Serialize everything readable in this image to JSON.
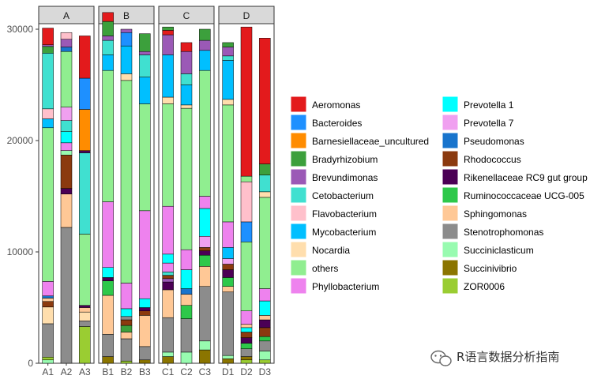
{
  "chart_data": {
    "type": "bar",
    "stacked": true,
    "facets": [
      "A",
      "B",
      "C",
      "D"
    ],
    "samples": {
      "A": [
        "A1",
        "A2",
        "A3"
      ],
      "B": [
        "B1",
        "B2",
        "B3"
      ],
      "C": [
        "C1",
        "C2",
        "C3"
      ],
      "D": [
        "D1",
        "D2",
        "D3"
      ]
    },
    "ylim": [
      0,
      30000
    ],
    "yticks": [
      0,
      10000,
      20000,
      30000
    ],
    "ytick_labels": [
      "0",
      "10000",
      "20000",
      "30000"
    ],
    "legend_position": "right",
    "taxa": [
      {
        "name": "Aeromonas",
        "color": "#e31a1c"
      },
      {
        "name": "Bacteroides",
        "color": "#1e90ff"
      },
      {
        "name": "Barnesiellaceae_uncultured",
        "color": "#ff8c00"
      },
      {
        "name": "Bradyrhizobium",
        "color": "#3ca03c"
      },
      {
        "name": "Brevundimonas",
        "color": "#9b59b6"
      },
      {
        "name": "Cetobacterium",
        "color": "#40e0d0"
      },
      {
        "name": "Flavobacterium",
        "color": "#ffc0cb"
      },
      {
        "name": "Mycobacterium",
        "color": "#00bfff"
      },
      {
        "name": "Nocardia",
        "color": "#ffdead"
      },
      {
        "name": "others",
        "color": "#90ee90"
      },
      {
        "name": "Phyllobacterium",
        "color": "#ee82ee"
      },
      {
        "name": "Prevotella 1",
        "color": "#00ffff"
      },
      {
        "name": "Prevotella 7",
        "color": "#f0a0f0"
      },
      {
        "name": "Pseudomonas",
        "color": "#1874cd"
      },
      {
        "name": "Rhodococcus",
        "color": "#8b3a0f"
      },
      {
        "name": "Rikenellaceae RC9 gut group",
        "color": "#4b0055"
      },
      {
        "name": "Ruminococcaceae UCG-005",
        "color": "#2ec84a"
      },
      {
        "name": "Sphingomonas",
        "color": "#ffc896"
      },
      {
        "name": "Stenotrophomonas",
        "color": "#8c8c8c"
      },
      {
        "name": "Succiniclasticum",
        "color": "#98fbb0"
      },
      {
        "name": "Succinivibrio",
        "color": "#8b7500"
      },
      {
        "name": "ZOR0006",
        "color": "#9acd32"
      }
    ],
    "series_by_sample": {
      "A1": [
        {
          "taxon": "Succiniclasticum",
          "value": 300
        },
        {
          "taxon": "ZOR0006",
          "value": 250
        },
        {
          "taxon": "Stenotrophomonas",
          "value": 3000
        },
        {
          "taxon": "Nocardia",
          "value": 1500
        },
        {
          "taxon": "Rhodococcus",
          "value": 500
        },
        {
          "taxon": "Sphingomonas",
          "value": 300
        },
        {
          "taxon": "Pseudomonas",
          "value": 200
        },
        {
          "taxon": "Phyllobacterium",
          "value": 1300
        },
        {
          "taxon": "others",
          "value": 13800
        },
        {
          "taxon": "Mycobacterium",
          "value": 800
        },
        {
          "taxon": "Flavobacterium",
          "value": 900
        },
        {
          "taxon": "Cetobacterium",
          "value": 5000
        },
        {
          "taxon": "Bradyrhizobium",
          "value": 600
        },
        {
          "taxon": "Brevundimonas",
          "value": 150
        },
        {
          "taxon": "Aeromonas",
          "value": 1500
        }
      ],
      "A2": [
        {
          "taxon": "Stenotrophomonas",
          "value": 12200
        },
        {
          "taxon": "Sphingomonas",
          "value": 3000
        },
        {
          "taxon": "Rikenellaceae RC9 gut group",
          "value": 500
        },
        {
          "taxon": "Rhodococcus",
          "value": 3000
        },
        {
          "taxon": "Succiniclasticum",
          "value": 400
        },
        {
          "taxon": "Phyllobacterium",
          "value": 700
        },
        {
          "taxon": "Prevotella 1",
          "value": 1000
        },
        {
          "taxon": "Cetobacterium",
          "value": 1000
        },
        {
          "taxon": "Prevotella 7",
          "value": 1200
        },
        {
          "taxon": "others",
          "value": 5000
        },
        {
          "taxon": "Pseudomonas",
          "value": 400
        },
        {
          "taxon": "Brevundimonas",
          "value": 700
        },
        {
          "taxon": "Flavobacterium",
          "value": 600
        }
      ],
      "A3": [
        {
          "taxon": "ZOR0006",
          "value": 3300
        },
        {
          "taxon": "Stenotrophomonas",
          "value": 500
        },
        {
          "taxon": "Nocardia",
          "value": 800
        },
        {
          "taxon": "Sphingomonas",
          "value": 400
        },
        {
          "taxon": "Rikenellaceae RC9 gut group",
          "value": 200
        },
        {
          "taxon": "others",
          "value": 6400
        },
        {
          "taxon": "Cetobacterium",
          "value": 7300
        },
        {
          "taxon": "Rikenellaceae RC9 gut group",
          "value": 200
        },
        {
          "taxon": "Barnesiellaceae_uncultured",
          "value": 3700
        },
        {
          "taxon": "Bacteroides",
          "value": 2800
        },
        {
          "taxon": "Aeromonas",
          "value": 3800
        }
      ],
      "B1": [
        {
          "taxon": "Succinivibrio",
          "value": 600
        },
        {
          "taxon": "Stenotrophomonas",
          "value": 2000
        },
        {
          "taxon": "Sphingomonas",
          "value": 3500
        },
        {
          "taxon": "Ruminococcaceae UCG-005",
          "value": 1300
        },
        {
          "taxon": "Rikenellaceae RC9 gut group",
          "value": 300
        },
        {
          "taxon": "Prevotella 1",
          "value": 900
        },
        {
          "taxon": "Phyllobacterium",
          "value": 5900
        },
        {
          "taxon": "others",
          "value": 11800
        },
        {
          "taxon": "Mycobacterium",
          "value": 1400
        },
        {
          "taxon": "Cetobacterium",
          "value": 1300
        },
        {
          "taxon": "Brevundimonas",
          "value": 400
        },
        {
          "taxon": "Bradyrhizobium",
          "value": 1300
        },
        {
          "taxon": "Aeromonas",
          "value": 800
        }
      ],
      "B2": [
        {
          "taxon": "ZOR0006",
          "value": 200
        },
        {
          "taxon": "Stenotrophomonas",
          "value": 2000
        },
        {
          "taxon": "Sphingomonas",
          "value": 600
        },
        {
          "taxon": "Bradyrhizobium",
          "value": 600
        },
        {
          "taxon": "Rhodococcus",
          "value": 500
        },
        {
          "taxon": "Stenotrophomonas",
          "value": 300
        },
        {
          "taxon": "Prevotella 1",
          "value": 700
        },
        {
          "taxon": "Phyllobacterium",
          "value": 2300
        },
        {
          "taxon": "others",
          "value": 18200
        },
        {
          "taxon": "Nocardia",
          "value": 600
        },
        {
          "taxon": "Mycobacterium",
          "value": 2500
        },
        {
          "taxon": "Bacteroides",
          "value": 1200
        },
        {
          "taxon": "Brevundimonas",
          "value": 300
        }
      ],
      "B3": [
        {
          "taxon": "Succinivibrio",
          "value": 300
        },
        {
          "taxon": "Stenotrophomonas",
          "value": 1200
        },
        {
          "taxon": "Sphingomonas",
          "value": 2800
        },
        {
          "taxon": "Rhodococcus",
          "value": 400
        },
        {
          "taxon": "Rikenellaceae RC9 gut group",
          "value": 300
        },
        {
          "taxon": "Prevotella 1",
          "value": 800
        },
        {
          "taxon": "Phyllobacterium",
          "value": 7900
        },
        {
          "taxon": "others",
          "value": 9600
        },
        {
          "taxon": "Mycobacterium",
          "value": 2400
        },
        {
          "taxon": "Cetobacterium",
          "value": 2000
        },
        {
          "taxon": "Brevundimonas",
          "value": 300
        },
        {
          "taxon": "Bradyrhizobium",
          "value": 1600
        }
      ],
      "C1": [
        {
          "taxon": "Succinivibrio",
          "value": 600
        },
        {
          "taxon": "Succiniclasticum",
          "value": 400
        },
        {
          "taxon": "Stenotrophomonas",
          "value": 3100
        },
        {
          "taxon": "Sphingomonas",
          "value": 2500
        },
        {
          "taxon": "Rikenellaceae RC9 gut group",
          "value": 700
        },
        {
          "taxon": "Brevundimonas",
          "value": 300
        },
        {
          "taxon": "Rhodococcus",
          "value": 300
        },
        {
          "taxon": "Cetobacterium",
          "value": 300
        },
        {
          "taxon": "Phyllobacterium",
          "value": 800
        },
        {
          "taxon": "Prevotella 1",
          "value": 800
        },
        {
          "taxon": "Phyllobacterium",
          "value": 4300
        },
        {
          "taxon": "others",
          "value": 9200
        },
        {
          "taxon": "Nocardia",
          "value": 600
        },
        {
          "taxon": "Mycobacterium",
          "value": 3800
        },
        {
          "taxon": "Brevundimonas",
          "value": 1800
        },
        {
          "taxon": "Aeromonas",
          "value": 400
        },
        {
          "taxon": "Bradyrhizobium",
          "value": 300
        }
      ],
      "C2": [
        {
          "taxon": "Succiniclasticum",
          "value": 1000
        },
        {
          "taxon": "Stenotrophomonas",
          "value": 3000
        },
        {
          "taxon": "Ruminococcaceae UCG-005",
          "value": 1200
        },
        {
          "taxon": "Sphingomonas",
          "value": 1000
        },
        {
          "taxon": "Pseudomonas",
          "value": 500
        },
        {
          "taxon": "Prevotella 1",
          "value": 1700
        },
        {
          "taxon": "Phyllobacterium",
          "value": 1800
        },
        {
          "taxon": "others",
          "value": 12700
        },
        {
          "taxon": "Nocardia",
          "value": 300
        },
        {
          "taxon": "Mycobacterium",
          "value": 1800
        },
        {
          "taxon": "Cetobacterium",
          "value": 1000
        },
        {
          "taxon": "Brevundimonas",
          "value": 2000
        },
        {
          "taxon": "Aeromonas",
          "value": 800
        }
      ],
      "C3": [
        {
          "taxon": "Succinivibrio",
          "value": 1200
        },
        {
          "taxon": "Succiniclasticum",
          "value": 800
        },
        {
          "taxon": "Stenotrophomonas",
          "value": 4900
        },
        {
          "taxon": "Sphingomonas",
          "value": 1800
        },
        {
          "taxon": "Ruminococcaceae UCG-005",
          "value": 1000
        },
        {
          "taxon": "Rikenellaceae RC9 gut group",
          "value": 400
        },
        {
          "taxon": "Rhodococcus",
          "value": 300
        },
        {
          "taxon": "Prevotella 7",
          "value": 1000
        },
        {
          "taxon": "Prevotella 1",
          "value": 2500
        },
        {
          "taxon": "Phyllobacterium",
          "value": 1100
        },
        {
          "taxon": "others",
          "value": 11300
        },
        {
          "taxon": "Mycobacterium",
          "value": 1800
        },
        {
          "taxon": "Brevundimonas",
          "value": 900
        },
        {
          "taxon": "Bradyrhizobium",
          "value": 1000
        }
      ],
      "D1": [
        {
          "taxon": "Succinivibrio",
          "value": 400
        },
        {
          "taxon": "Succiniclasticum",
          "value": 300
        },
        {
          "taxon": "Stenotrophomonas",
          "value": 5700
        },
        {
          "taxon": "Sphingomonas",
          "value": 500
        },
        {
          "taxon": "Ruminococcaceae UCG-005",
          "value": 800
        },
        {
          "taxon": "Rikenellaceae RC9 gut group",
          "value": 700
        },
        {
          "taxon": "Rhodococcus",
          "value": 500
        },
        {
          "taxon": "Prevotella 7",
          "value": 500
        },
        {
          "taxon": "Mycobacterium",
          "value": 1000
        },
        {
          "taxon": "Phyllobacterium",
          "value": 2300
        },
        {
          "taxon": "others",
          "value": 10500
        },
        {
          "taxon": "Nocardia",
          "value": 500
        },
        {
          "taxon": "Mycobacterium",
          "value": 3500
        },
        {
          "taxon": "Cetobacterium",
          "value": 400
        },
        {
          "taxon": "Brevundimonas",
          "value": 800
        },
        {
          "taxon": "Bradyrhizobium",
          "value": 400
        }
      ],
      "D2": [
        {
          "taxon": "ZOR0006",
          "value": 300
        },
        {
          "taxon": "Succinivibrio",
          "value": 300
        },
        {
          "taxon": "Stenotrophomonas",
          "value": 700
        },
        {
          "taxon": "Ruminococcaceae UCG-005",
          "value": 500
        },
        {
          "taxon": "Rikenellaceae RC9 gut group",
          "value": 500
        },
        {
          "taxon": "Rhodococcus",
          "value": 500
        },
        {
          "taxon": "Prevotella 1",
          "value": 400
        },
        {
          "taxon": "Sphingomonas",
          "value": 300
        },
        {
          "taxon": "Phyllobacterium",
          "value": 1200
        },
        {
          "taxon": "others",
          "value": 6200
        },
        {
          "taxon": "Bacteroides",
          "value": 1800
        },
        {
          "taxon": "Flavobacterium",
          "value": 3600
        },
        {
          "taxon": "others",
          "value": 500
        },
        {
          "taxon": "Aeromonas",
          "value": 13400
        }
      ],
      "D3": [
        {
          "taxon": "ZOR0006",
          "value": 300
        },
        {
          "taxon": "Succiniclasticum",
          "value": 800
        },
        {
          "taxon": "Stenotrophomonas",
          "value": 900
        },
        {
          "taxon": "Ruminococcaceae UCG-005",
          "value": 400
        },
        {
          "taxon": "Rhodococcus",
          "value": 800
        },
        {
          "taxon": "Rikenellaceae RC9 gut group",
          "value": 700
        },
        {
          "taxon": "Sphingomonas",
          "value": 400
        },
        {
          "taxon": "Prevotella 1",
          "value": 1300
        },
        {
          "taxon": "Phyllobacterium",
          "value": 1100
        },
        {
          "taxon": "others",
          "value": 8200
        },
        {
          "taxon": "Nocardia",
          "value": 500
        },
        {
          "taxon": "Cetobacterium",
          "value": 1500
        },
        {
          "taxon": "Bradyrhizobium",
          "value": 1000
        },
        {
          "taxon": "Aeromonas",
          "value": 11300
        }
      ]
    }
  },
  "watermark": {
    "text": "R语言数据分析指南",
    "icon": "wechat-icon"
  }
}
